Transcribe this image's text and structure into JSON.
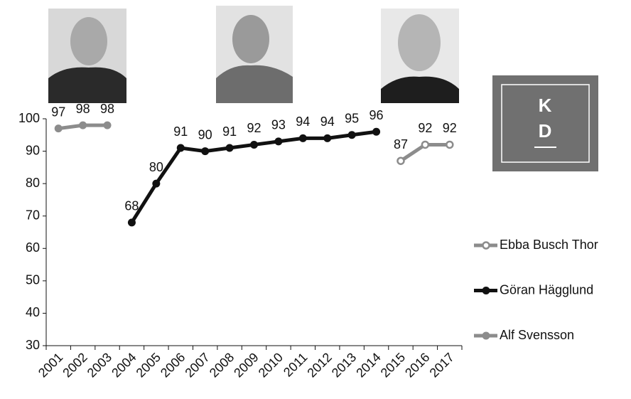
{
  "chart_data": {
    "type": "line",
    "categories": [
      "2001",
      "2002",
      "2003",
      "2004",
      "2005",
      "2006",
      "2007",
      "2008",
      "2009",
      "2010",
      "2011",
      "2012",
      "2013",
      "2014",
      "2015",
      "2016",
      "2017"
    ],
    "series": [
      {
        "name": "Ebba Busch Thor",
        "color": "#8c8c8c",
        "markers": "hollow",
        "values": [
          null,
          null,
          null,
          null,
          null,
          null,
          null,
          null,
          null,
          null,
          null,
          null,
          null,
          null,
          87,
          92,
          92
        ]
      },
      {
        "name": "Göran Hägglund",
        "color": "#111111",
        "markers": "filled",
        "values": [
          null,
          null,
          null,
          68,
          80,
          91,
          90,
          91,
          92,
          93,
          94,
          94,
          95,
          96,
          null,
          null,
          null
        ]
      },
      {
        "name": "Alf Svensson",
        "color": "#8c8c8c",
        "markers": "filled",
        "values": [
          97,
          98,
          98,
          null,
          null,
          null,
          null,
          null,
          null,
          null,
          null,
          null,
          null,
          null,
          null,
          null,
          null
        ]
      }
    ],
    "ylim": [
      30,
      100
    ],
    "yticks": [
      30,
      40,
      50,
      60,
      70,
      80,
      90,
      100
    ],
    "legend": "right"
  },
  "logo": {
    "lines": [
      "K",
      "D"
    ]
  }
}
